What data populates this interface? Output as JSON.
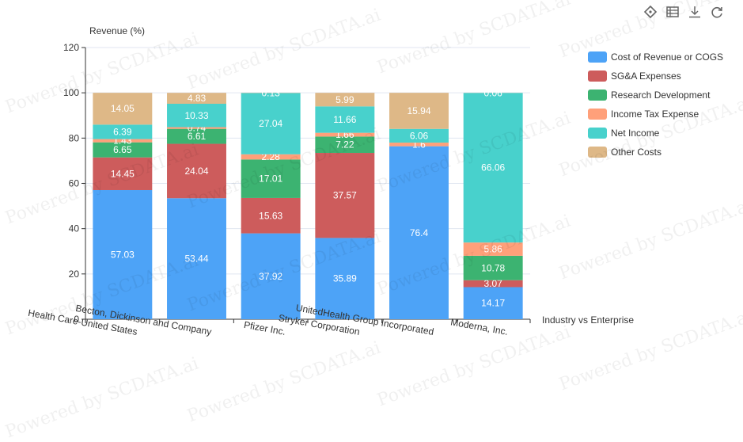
{
  "watermark": "Powered by SCDATA.ai",
  "toolbar": {
    "icons": [
      "tag-icon",
      "data-view-icon",
      "download-icon",
      "restore-icon"
    ]
  },
  "chart_data": {
    "type": "bar",
    "stacked": true,
    "ylabel": "Revenue (%)",
    "xlabel": "Industry vs Enterprise",
    "ylim": [
      0,
      120
    ],
    "yticks": [
      0,
      20,
      40,
      60,
      80,
      100,
      120
    ],
    "grid": true,
    "legend_position": "right",
    "categories": [
      "Health Care-United States",
      "Becton, Dickinson and Company",
      "Pfizer Inc.",
      "Stryker Corporation",
      "UnitedHealth Group Incorporated",
      "Moderna, Inc."
    ],
    "series": [
      {
        "name": "Cost of Revenue or COGS",
        "color": "#4da3f7",
        "values": [
          57.03,
          53.44,
          37.92,
          35.89,
          76.4,
          14.17
        ]
      },
      {
        "name": "SG&A Expenses",
        "color": "#cd5c5c",
        "values": [
          14.45,
          24.04,
          15.63,
          37.57,
          0.0,
          3.07
        ]
      },
      {
        "name": "Research Development",
        "color": "#3cb371",
        "values": [
          6.65,
          6.61,
          17.01,
          7.22,
          0.0,
          10.78
        ]
      },
      {
        "name": "Income Tax Expense",
        "color": "#ffa07a",
        "values": [
          1.43,
          0.74,
          2.28,
          1.66,
          1.6,
          5.86
        ]
      },
      {
        "name": "Net Income",
        "color": "#48d1cc",
        "values": [
          6.39,
          10.33,
          27.04,
          11.66,
          6.06,
          66.06
        ]
      },
      {
        "name": "Other Costs",
        "color": "#deb887",
        "values": [
          14.05,
          4.83,
          0.13,
          5.99,
          15.94,
          0.06
        ]
      }
    ],
    "labels": [
      [
        "57.03",
        "14.45",
        "6.65",
        "1.43",
        "6.39",
        "14.05"
      ],
      [
        "53.44",
        "24.04",
        "6.61",
        "0.74",
        "10.33",
        "4.83"
      ],
      [
        "37.92",
        "15.63",
        "17.01",
        "2.28",
        "27.04",
        "0.13"
      ],
      [
        "35.89",
        "37.57",
        "7.22",
        "1.66",
        "11.66",
        "5.99"
      ],
      [
        "76.4",
        "",
        "",
        "1.6",
        "6.06",
        "15.94"
      ],
      [
        "14.17",
        "3.07",
        "10.78",
        "5.86",
        "66.06",
        "0.06"
      ]
    ]
  }
}
